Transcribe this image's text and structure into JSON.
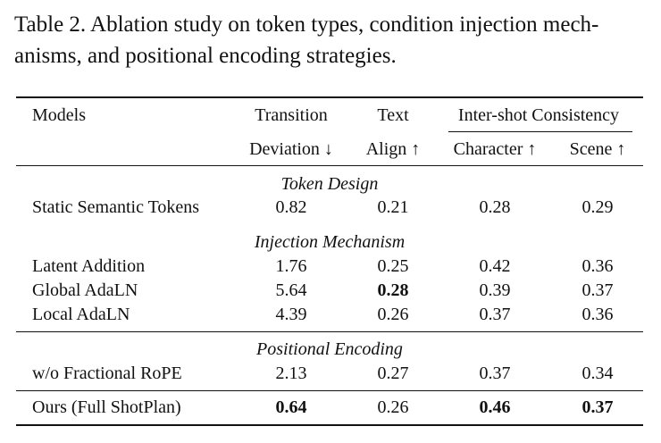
{
  "caption": {
    "line1": "Table 2. Ablation study on token types, condition injection mech-",
    "line2": "anisms, and positional encoding strategies."
  },
  "table": {
    "header": {
      "models": "Models",
      "transition_top": "Transition",
      "transition_bottom": "Deviation ↓",
      "text_top": "Text",
      "text_bottom": "Align ↑",
      "group_label": "Inter-shot Consistency",
      "character": "Character ↑",
      "scene": "Scene ↑"
    },
    "sections": [
      {
        "title": "Token Design",
        "rows": [
          {
            "model": "Static Semantic Tokens",
            "transition": "0.82",
            "text": "0.21",
            "character": "0.28",
            "scene": "0.29"
          }
        ]
      },
      {
        "title": "Injection Mechanism",
        "rows": [
          {
            "model": "Latent Addition",
            "transition": "1.76",
            "text": "0.25",
            "character": "0.42",
            "scene": "0.36"
          },
          {
            "model": "Global AdaLN",
            "transition": "5.64",
            "text": "0.28",
            "character": "0.39",
            "scene": "0.37"
          },
          {
            "model": "Local AdaLN",
            "transition": "4.39",
            "text": "0.26",
            "character": "0.37",
            "scene": "0.36"
          }
        ]
      },
      {
        "title": "Positional Encoding",
        "rows": [
          {
            "model": "w/o Fractional RoPE",
            "transition": "2.13",
            "text": "0.27",
            "character": "0.37",
            "scene": "0.34"
          }
        ]
      }
    ],
    "final_row": {
      "model": "Ours (Full ShotPlan)",
      "transition": "0.64",
      "text": "0.26",
      "character": "0.46",
      "scene": "0.37"
    }
  }
}
